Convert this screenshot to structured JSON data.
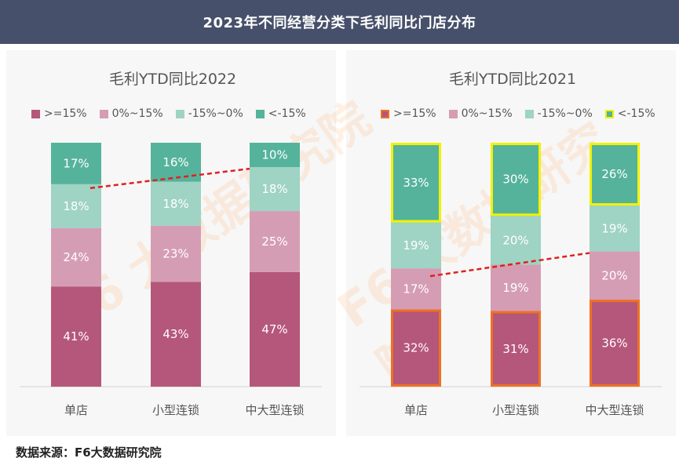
{
  "header": {
    "title": "2023年不同经营分类下毛利同比门店分布"
  },
  "footer": {
    "source": "数据来源：F6大数据研究院"
  },
  "watermark": {
    "text": "F6 大数据研究院"
  },
  "colors": {
    "header_bg": "#46506a",
    "ge15": "#b5577a",
    "zero_15": "#d59db3",
    "neg15_0": "#9fd3c4",
    "lt_neg15": "#55b39b",
    "trend": "#e02020",
    "highlight_orange": "#f07021",
    "highlight_yellow": "#f2f200"
  },
  "chart_data": [
    {
      "type": "bar",
      "stacked": true,
      "title": "毛利YTD同比2022",
      "categories": [
        "单店",
        "小型连锁",
        "中大型连锁"
      ],
      "legend": [
        "&gt;=15%",
        "0%~15%",
        "-15%~0%",
        "&lt;-15%"
      ],
      "series": [
        {
          "name": ">=15%",
          "values": [
            41,
            43,
            47
          ],
          "labels": [
            "41%",
            "43%",
            "47%"
          ]
        },
        {
          "name": "0%~15%",
          "values": [
            24,
            23,
            25
          ],
          "labels": [
            "24%",
            "23%",
            "25%"
          ]
        },
        {
          "name": "-15%~0%",
          "values": [
            18,
            18,
            18
          ],
          "labels": [
            "18%",
            "18%",
            "18%"
          ]
        },
        {
          "name": "<-15%",
          "values": [
            17,
            16,
            10
          ],
          "labels": [
            "17%",
            "16%",
            "10%"
          ]
        }
      ],
      "ylim": [
        0,
        100
      ],
      "trendline": "dashed red line from 单店 to 中大型连锁 across the -15%~0% band",
      "highlighted_series": []
    },
    {
      "type": "bar",
      "stacked": true,
      "title": "毛利YTD同比2021",
      "categories": [
        "单店",
        "小型连锁",
        "中大型连锁"
      ],
      "legend": [
        "&gt;=15%",
        "0%~15%",
        "-15%~0%",
        "&lt;-15%"
      ],
      "series": [
        {
          "name": ">=15%",
          "values": [
            32,
            31,
            36
          ],
          "labels": [
            "32%",
            "31%",
            "36%"
          ]
        },
        {
          "name": "0%~15%",
          "values": [
            17,
            19,
            20
          ],
          "labels": [
            "17%",
            "19%",
            "20%"
          ]
        },
        {
          "name": "-15%~0%",
          "values": [
            19,
            20,
            19
          ],
          "labels": [
            "19%",
            "20%",
            "19%"
          ]
        },
        {
          "name": "<-15%",
          "values": [
            33,
            30,
            26
          ],
          "labels": [
            "33%",
            "30%",
            "26%"
          ]
        }
      ],
      "ylim": [
        0,
        100
      ],
      "trendline": "dashed red line from 单店 to 中大型连锁 across the 0%~15% band",
      "highlighted_series": [
        ">=15%",
        "<-15%"
      ]
    }
  ]
}
